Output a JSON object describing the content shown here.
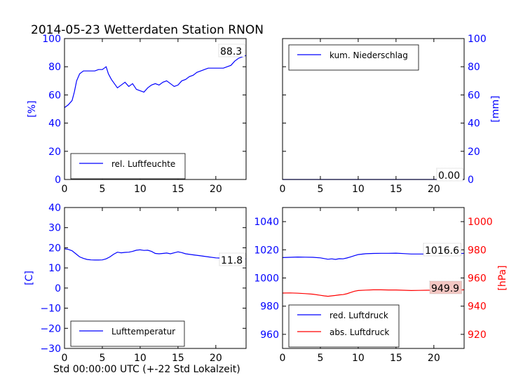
{
  "title": "2014-05-23 Wetterdaten Station RNON",
  "xlabel": "Std 00:00:00 UTC (+-22 Std Lokalzeit)",
  "colors": {
    "blue": "#0000ff",
    "red": "#ff0000",
    "black": "#000000"
  },
  "chart_data": [
    {
      "type": "line",
      "panel": "top-left",
      "ylabel": "[%]",
      "xlim": [
        0,
        24
      ],
      "ylim": [
        0,
        100
      ],
      "xticks": [
        0,
        5,
        10,
        15,
        20
      ],
      "yticks": [
        0,
        20,
        40,
        60,
        80,
        100
      ],
      "legend": "lower-left",
      "annotation": "88.3",
      "series": [
        {
          "name": "rel. Luftfeuchte",
          "color": "#0000ff",
          "x": [
            0,
            0.5,
            1,
            1.3,
            1.6,
            2,
            2.5,
            3,
            3.5,
            4,
            4.5,
            5,
            5.5,
            5.8,
            6.2,
            6.6,
            7,
            7.5,
            8,
            8.5,
            9,
            9.5,
            10,
            10.5,
            11,
            11.5,
            12,
            12.5,
            13,
            13.5,
            14,
            14.5,
            15,
            15.5,
            16,
            16.5,
            17,
            17.5,
            18,
            18.5,
            19,
            19.5,
            20,
            20.5,
            21,
            21.5,
            22,
            22.5,
            23,
            23.5,
            24
          ],
          "y": [
            51,
            53,
            56,
            62,
            70,
            75,
            77,
            77,
            77,
            77,
            78,
            78,
            80,
            75,
            71,
            68,
            65,
            67,
            69,
            66,
            68,
            64,
            63,
            62,
            65,
            67,
            68,
            67,
            69,
            70,
            68,
            66,
            67,
            70,
            71,
            73,
            74,
            76,
            77,
            78,
            79,
            79,
            79,
            79,
            79,
            80,
            81,
            84,
            86,
            87,
            88
          ]
        }
      ]
    },
    {
      "type": "line",
      "panel": "top-right",
      "ylabel": "[mm]",
      "xlim": [
        0,
        24
      ],
      "ylim": [
        0,
        100
      ],
      "xticks": [
        0,
        5,
        10,
        15,
        20
      ],
      "yticks": [
        0,
        20,
        40,
        60,
        80,
        100
      ],
      "legend": "upper-left",
      "annotation": "0.00",
      "series": [
        {
          "name": "kum. Niederschlag",
          "color": "#0000ff",
          "x": [
            0,
            24
          ],
          "y": [
            0,
            0
          ]
        }
      ]
    },
    {
      "type": "line",
      "panel": "bottom-left",
      "ylabel": "[C]",
      "xlim": [
        0,
        24
      ],
      "ylim": [
        -30,
        40
      ],
      "xticks": [
        0,
        5,
        10,
        15,
        20
      ],
      "yticks": [
        -30,
        -20,
        -10,
        0,
        10,
        20,
        30,
        40
      ],
      "legend": "lower-left",
      "annotation": "11.8",
      "series": [
        {
          "name": "Lufttemperatur",
          "color": "#0000ff",
          "x": [
            0,
            0.5,
            1,
            1.5,
            2,
            2.5,
            3,
            3.5,
            4,
            4.5,
            5,
            5.5,
            6,
            6.5,
            7,
            7.5,
            8,
            8.5,
            9,
            9.5,
            10,
            10.5,
            11,
            11.5,
            12,
            12.5,
            13,
            13.5,
            14,
            14.5,
            15,
            15.5,
            16,
            17,
            18,
            19,
            20,
            21,
            22,
            23,
            24
          ],
          "y": [
            19.5,
            19.2,
            18.5,
            17,
            15.5,
            14.7,
            14.2,
            14,
            13.9,
            13.9,
            14,
            14.5,
            15.5,
            16.8,
            17.8,
            17.5,
            17.7,
            17.8,
            18.2,
            18.8,
            19,
            18.7,
            18.8,
            18.2,
            17.2,
            17,
            17.2,
            17.4,
            17,
            17.5,
            18,
            17.6,
            17,
            16.5,
            16,
            15.5,
            15,
            14.8,
            14.6,
            14.4,
            14.5
          ]
        }
      ]
    },
    {
      "type": "line",
      "panel": "bottom-right",
      "ylabel_right": "[hPa]",
      "xlim": [
        0,
        24
      ],
      "ylim_left": [
        950,
        1050
      ],
      "ylim_right": [
        910,
        1010
      ],
      "xticks": [
        0,
        5,
        10,
        15,
        20
      ],
      "yticks_left": [
        960,
        980,
        1000,
        1020,
        1040
      ],
      "yticks_right": [
        920,
        940,
        960,
        980,
        1000
      ],
      "legend": "lower-left",
      "annotations": [
        "1016.6",
        "949.9"
      ],
      "series": [
        {
          "name": "red. Luftdruck",
          "color": "#0000ff",
          "axis": "left",
          "x": [
            0,
            1,
            2,
            3,
            4,
            5,
            5.5,
            6,
            6.5,
            7,
            7.5,
            8,
            8.5,
            9,
            9.5,
            10,
            11,
            12,
            13,
            14,
            15,
            16,
            17,
            18,
            19,
            20,
            21,
            22,
            23,
            24
          ],
          "y": [
            1014.5,
            1014.7,
            1014.9,
            1014.8,
            1014.7,
            1014.3,
            1013.8,
            1013.3,
            1013.6,
            1013.2,
            1013.7,
            1013.6,
            1014.2,
            1015,
            1015.8,
            1016.6,
            1017.2,
            1017.4,
            1017.5,
            1017.5,
            1017.6,
            1017.3,
            1017,
            1017,
            1017,
            1017.1,
            1017.3,
            1017.3,
            1017.2,
            1017.5
          ]
        },
        {
          "name": "abs. Luftdruck",
          "color": "#ff0000",
          "axis": "right",
          "x": [
            0,
            1,
            2,
            3,
            4,
            5,
            5.5,
            6,
            6.5,
            7,
            7.5,
            8,
            8.5,
            9,
            9.5,
            10,
            11,
            12,
            13,
            14,
            15,
            16,
            17,
            18,
            19,
            20,
            21,
            22,
            23,
            24
          ],
          "y": [
            949.3,
            949.4,
            949.2,
            948.9,
            948.5,
            947.7,
            947.3,
            947,
            947.3,
            947.6,
            948,
            948.2,
            948.8,
            949.7,
            950.6,
            951.1,
            951.4,
            951.6,
            951.6,
            951.5,
            951.5,
            951.3,
            951.1,
            951.2,
            951.3,
            951.4,
            951.4,
            951.5,
            951.4,
            951.6
          ]
        }
      ]
    }
  ]
}
